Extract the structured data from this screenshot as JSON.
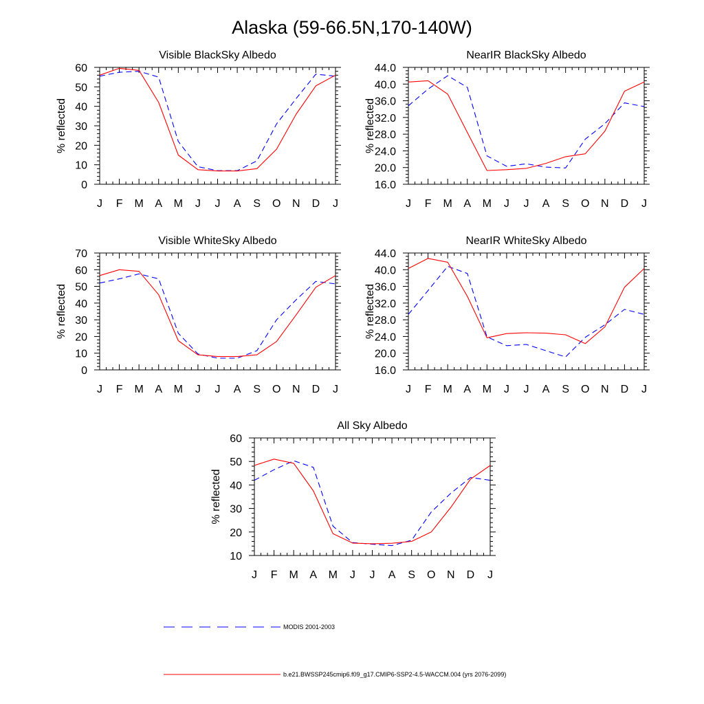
{
  "figure_title": "Alaska (59-66.5N,170-140W)",
  "legend": [
    {
      "label": "MODIS 2001-2003",
      "color": "#0000ff",
      "dash": true
    },
    {
      "label": "b.e21.BWSSP245cmip6.f09_g17.CMIP6-SSP2-4.5-WACCM.004 (yrs 2076-2099)",
      "color": "#ff0000",
      "dash": false
    }
  ],
  "chart_data": [
    {
      "type": "line",
      "title": "Visible BlackSky Albedo",
      "xlabel": "",
      "ylabel": "% reflected",
      "categories": [
        "J",
        "F",
        "M",
        "A",
        "M",
        "J",
        "J",
        "A",
        "S",
        "O",
        "N",
        "D",
        "J"
      ],
      "ylim": [
        0,
        60
      ],
      "yticks": [
        "0",
        "10",
        "20",
        "30",
        "40",
        "50",
        "60"
      ],
      "series": [
        {
          "name": "MODIS 2001-2003",
          "color": "#0000ff",
          "dashed": true,
          "values": [
            55.5,
            57.5,
            58,
            55,
            22,
            9,
            7,
            7,
            12,
            31,
            44,
            56.5,
            55.5
          ]
        },
        {
          "name": "b.e21.BWSSP245cmip6.f09_g17.CMIP6-SSP2-4.5-WACCM.004 (yrs 2076-2099)",
          "color": "#ff0000",
          "dashed": false,
          "values": [
            56,
            59.5,
            58.5,
            42,
            15,
            7.5,
            6.8,
            6.8,
            8,
            18,
            36,
            50.5,
            56
          ]
        }
      ]
    },
    {
      "type": "line",
      "title": "NearIR BlackSky Albedo",
      "xlabel": "",
      "ylabel": "% reflected",
      "categories": [
        "J",
        "F",
        "M",
        "A",
        "M",
        "J",
        "J",
        "A",
        "S",
        "O",
        "N",
        "D",
        "J"
      ],
      "ylim": [
        16,
        44
      ],
      "yticks": [
        "16.0",
        "20.0",
        "24.0",
        "28.0",
        "32.0",
        "36.0",
        "40.0",
        "44.0"
      ],
      "series": [
        {
          "name": "MODIS 2001-2003",
          "color": "#0000ff",
          "dashed": true,
          "values": [
            34.8,
            38.8,
            42,
            39.2,
            22.8,
            20.3,
            20.9,
            20.1,
            19.9,
            26.8,
            30.5,
            35.5,
            34.6
          ]
        },
        {
          "name": "b.e21.BWSSP245cmip6.f09_g17.CMIP6-SSP2-4.5-WACCM.004 (yrs 2076-2099)",
          "color": "#ff0000",
          "dashed": false,
          "values": [
            40.5,
            40.8,
            37.6,
            28.4,
            19.3,
            19.5,
            19.8,
            21,
            22.6,
            23.3,
            28.7,
            38.3,
            40.5
          ]
        }
      ]
    },
    {
      "type": "line",
      "title": "Visible WhiteSky Albedo",
      "xlabel": "",
      "ylabel": "% reflected",
      "categories": [
        "J",
        "F",
        "M",
        "A",
        "M",
        "J",
        "J",
        "A",
        "S",
        "O",
        "N",
        "D",
        "J"
      ],
      "ylim": [
        0,
        70
      ],
      "yticks": [
        "0",
        "10",
        "20",
        "30",
        "40",
        "50",
        "60",
        "70"
      ],
      "series": [
        {
          "name": "MODIS 2001-2003",
          "color": "#0000ff",
          "dashed": true,
          "values": [
            52,
            54.5,
            57.5,
            54.5,
            22,
            9.5,
            7,
            7,
            11.5,
            30,
            42,
            53,
            51.5
          ]
        },
        {
          "name": "b.e21.BWSSP245cmip6.f09_g17.CMIP6-SSP2-4.5-WACCM.004 (yrs 2076-2099)",
          "color": "#ff0000",
          "dashed": false,
          "values": [
            56.5,
            60,
            59,
            45,
            17.5,
            9,
            8,
            8,
            9,
            17,
            33,
            49.5,
            56.5
          ]
        }
      ]
    },
    {
      "type": "line",
      "title": "NearIR WhiteSky Albedo",
      "xlabel": "",
      "ylabel": "% reflected",
      "categories": [
        "J",
        "F",
        "M",
        "A",
        "M",
        "J",
        "J",
        "A",
        "S",
        "O",
        "N",
        "D",
        "J"
      ],
      "ylim": [
        16,
        44
      ],
      "yticks": [
        "16.0",
        "20.0",
        "24.0",
        "28.0",
        "32.0",
        "36.0",
        "40.0",
        "44.0"
      ],
      "series": [
        {
          "name": "MODIS 2001-2003",
          "color": "#0000ff",
          "dashed": true,
          "values": [
            29.3,
            35,
            40.8,
            39.1,
            23.9,
            21.8,
            22.1,
            20.6,
            19.1,
            23.8,
            26.8,
            30.5,
            29.3
          ]
        },
        {
          "name": "b.e21.BWSSP245cmip6.f09_g17.CMIP6-SSP2-4.5-WACCM.004 (yrs 2076-2099)",
          "color": "#ff0000",
          "dashed": false,
          "values": [
            40.3,
            42.7,
            41.8,
            33.6,
            23.7,
            24.7,
            24.9,
            24.8,
            24.4,
            22.3,
            26.3,
            35.8,
            40.3
          ]
        }
      ]
    },
    {
      "type": "line",
      "title": "All Sky Albedo",
      "xlabel": "",
      "ylabel": "% reflected",
      "categories": [
        "J",
        "F",
        "M",
        "A",
        "M",
        "J",
        "J",
        "A",
        "S",
        "O",
        "N",
        "D",
        "J"
      ],
      "ylim": [
        10,
        60
      ],
      "yticks": [
        "10",
        "20",
        "30",
        "40",
        "50",
        "60"
      ],
      "series": [
        {
          "name": "MODIS 2001-2003",
          "color": "#0000ff",
          "dashed": true,
          "values": [
            42,
            46.5,
            50.3,
            47.5,
            22.5,
            15.5,
            14.8,
            14.2,
            16.5,
            28.5,
            36.5,
            43.2,
            42
          ]
        },
        {
          "name": "b.e21.BWSSP245cmip6.f09_g17.CMIP6-SSP2-4.5-WACCM.004 (yrs 2076-2099)",
          "color": "#ff0000",
          "dashed": false,
          "values": [
            48.3,
            51,
            49.2,
            37.5,
            19.3,
            15.3,
            15,
            15.2,
            16,
            20,
            30.5,
            42.5,
            48.3
          ]
        }
      ]
    }
  ]
}
